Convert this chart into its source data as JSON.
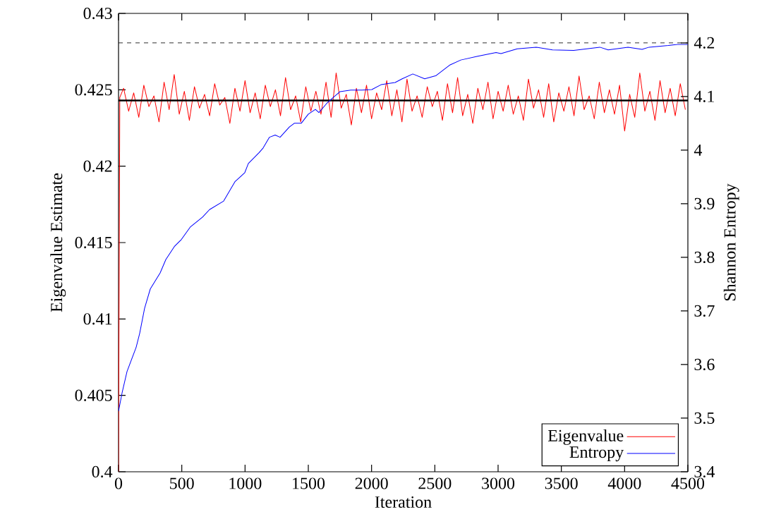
{
  "chart_data": {
    "type": "line",
    "xlabel": "Iteration",
    "ylabel": "Eigenvalue Estimate",
    "y2label": "Shannon Entropy",
    "xlim": [
      0,
      4500
    ],
    "xticks": [
      0,
      500,
      1000,
      1500,
      2000,
      2500,
      3000,
      3500,
      4000,
      4500
    ],
    "ylim": [
      0.4,
      0.43
    ],
    "yticks": [
      0.4,
      0.405,
      0.41,
      0.415,
      0.42,
      0.425,
      0.43
    ],
    "y2lim": [
      3.4,
      4.255
    ],
    "y2ticks": [
      3.4,
      3.5,
      3.6,
      3.7,
      3.8,
      3.9,
      4,
      4.1,
      4.2
    ],
    "legend": "bottom right",
    "series": [
      {
        "name": "Eigenvalue",
        "color": "#ff0000",
        "x": [
          0,
          10,
          40,
          80,
          120,
          160,
          200,
          240,
          280,
          320,
          360,
          400,
          440,
          480,
          520,
          560,
          600,
          640,
          680,
          720,
          760,
          800,
          840,
          880,
          920,
          960,
          1000,
          1040,
          1080,
          1120,
          1160,
          1200,
          1240,
          1280,
          1320,
          1360,
          1400,
          1440,
          1480,
          1520,
          1560,
          1600,
          1640,
          1680,
          1720,
          1760,
          1800,
          1840,
          1880,
          1920,
          1960,
          2000,
          2040,
          2080,
          2120,
          2160,
          2200,
          2240,
          2280,
          2320,
          2360,
          2400,
          2440,
          2480,
          2520,
          2560,
          2600,
          2640,
          2680,
          2720,
          2760,
          2800,
          2840,
          2880,
          2920,
          2960,
          3000,
          3040,
          3080,
          3120,
          3160,
          3200,
          3240,
          3280,
          3320,
          3360,
          3400,
          3440,
          3480,
          3520,
          3560,
          3600,
          3640,
          3680,
          3720,
          3760,
          3800,
          3840,
          3880,
          3920,
          3960,
          4000,
          4040,
          4080,
          4120,
          4160,
          4200,
          4240,
          4280,
          4320,
          4360,
          4400,
          4440,
          4480
        ],
        "values": [
          0.4,
          0.4245,
          0.4251,
          0.4236,
          0.4248,
          0.4232,
          0.4253,
          0.4239,
          0.4246,
          0.4229,
          0.4255,
          0.4237,
          0.426,
          0.4234,
          0.4249,
          0.423,
          0.4252,
          0.4238,
          0.4247,
          0.4233,
          0.4254,
          0.424,
          0.4245,
          0.4228,
          0.4251,
          0.4236,
          0.4256,
          0.4235,
          0.4248,
          0.4231,
          0.4253,
          0.4239,
          0.425,
          0.4233,
          0.4258,
          0.4237,
          0.4246,
          0.4229,
          0.4252,
          0.4236,
          0.4249,
          0.4234,
          0.4255,
          0.4232,
          0.4261,
          0.4238,
          0.4247,
          0.4227,
          0.4251,
          0.4235,
          0.4253,
          0.4231,
          0.4248,
          0.4237,
          0.4256,
          0.4233,
          0.425,
          0.4229,
          0.4257,
          0.4236,
          0.4246,
          0.4232,
          0.4252,
          0.4239,
          0.4249,
          0.423,
          0.4254,
          0.4235,
          0.4258,
          0.4233,
          0.4247,
          0.4228,
          0.4251,
          0.4237,
          0.4255,
          0.4231,
          0.4249,
          0.4236,
          0.4253,
          0.4234,
          0.4246,
          0.423,
          0.4257,
          0.4238,
          0.425,
          0.4232,
          0.4254,
          0.4229,
          0.4248,
          0.4236,
          0.4252,
          0.4233,
          0.4259,
          0.4237,
          0.4246,
          0.4231,
          0.4255,
          0.4235,
          0.425,
          0.4234,
          0.4253,
          0.4223,
          0.4247,
          0.4232,
          0.4261,
          0.4236,
          0.4249,
          0.423,
          0.4256,
          0.4235,
          0.4251,
          0.4233,
          0.4254,
          0.4237
        ]
      },
      {
        "name": "Entropy",
        "color": "#0000ff",
        "axis": "y2",
        "x": [
          0,
          28,
          67,
          139,
          167,
          206,
          251,
          329,
          374,
          441,
          496,
          569,
          664,
          719,
          831,
          920,
          998,
          1026,
          1110,
          1143,
          1193,
          1238,
          1277,
          1350,
          1389,
          1444,
          1500,
          1556,
          1584,
          1645,
          1701,
          1751,
          1835,
          1924,
          2002,
          2075,
          2186,
          2242,
          2326,
          2420,
          2510,
          2621,
          2705,
          2839,
          2984,
          3023,
          3151,
          3301,
          3430,
          3597,
          3804,
          3870,
          4027,
          4138,
          4194,
          4345,
          4417,
          4500
        ],
        "values": [
          3.513,
          3.547,
          3.587,
          3.632,
          3.658,
          3.705,
          3.741,
          3.771,
          3.796,
          3.82,
          3.833,
          3.857,
          3.875,
          3.889,
          3.905,
          3.941,
          3.958,
          3.975,
          3.995,
          4.004,
          4.024,
          4.028,
          4.024,
          4.043,
          4.05,
          4.05,
          4.067,
          4.076,
          4.07,
          4.087,
          4.099,
          4.109,
          4.112,
          4.112,
          4.113,
          4.122,
          4.126,
          4.133,
          4.142,
          4.133,
          4.139,
          4.159,
          4.168,
          4.175,
          4.182,
          4.18,
          4.189,
          4.192,
          4.187,
          4.186,
          4.192,
          4.187,
          4.192,
          4.188,
          4.192,
          4.195,
          4.197,
          4.197
        ]
      }
    ],
    "ref_lines": [
      {
        "axis": "y",
        "value": 0.4243,
        "color": "#000000",
        "line_style": "solid"
      },
      {
        "axis": "y2",
        "value": 4.2,
        "color": "#000000",
        "line_style": "dashed"
      }
    ]
  }
}
